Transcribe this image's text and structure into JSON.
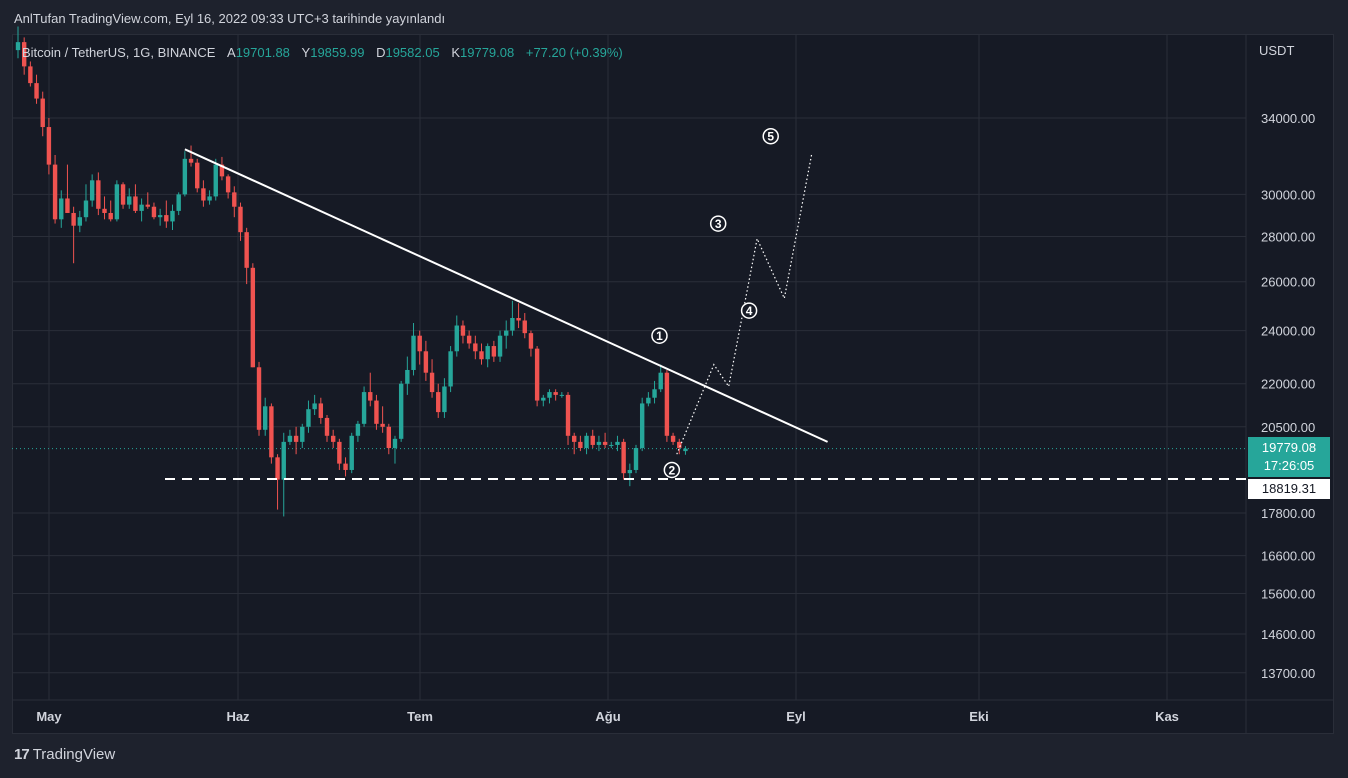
{
  "publish_line": "AnlTufan TradingView.com, Eyl 16, 2022 09:33 UTC+3 tarihinde yayınlandı",
  "legend": {
    "symbol": "Bitcoin / TetherUS, 1G, BINANCE",
    "open_key": "A",
    "open": "19701.88",
    "high_key": "Y",
    "high": "19859.99",
    "low_key": "D",
    "low": "19582.05",
    "close_key": "K",
    "close": "19779.08",
    "change": "+77.20 (+0.39%)"
  },
  "brand": {
    "logo": "17",
    "name": "TradingView"
  },
  "price_tag": {
    "price": "19779.08",
    "countdown": "17:26:05"
  },
  "support_tag": "18819.31",
  "colors": {
    "up": "#26a69a",
    "down": "#ef5350",
    "background": "#161a25",
    "grid": "#2a2e39"
  },
  "chart_data": {
    "type": "candlestick",
    "scale": "log",
    "currency": "USDT",
    "y_ticks": [
      "34000.00",
      "30000.00",
      "28000.00",
      "26000.00",
      "24000.00",
      "22000.00",
      "20500.00",
      "17800.00",
      "16600.00",
      "15600.00",
      "14600.00",
      "13700.00"
    ],
    "x_ticks": [
      "May",
      "Haz",
      "Tem",
      "Ağu",
      "Eyl",
      "Eki",
      "Kas"
    ],
    "last_price": 19779.08,
    "support_level": 18819.31,
    "candles": [
      [
        38000,
        39500,
        37500,
        38500
      ],
      [
        38500,
        38800,
        36500,
        37000
      ],
      [
        37000,
        37300,
        35800,
        36000
      ],
      [
        36000,
        36500,
        34800,
        35100
      ],
      [
        35100,
        35500,
        33000,
        33500
      ],
      [
        33500,
        34000,
        31000,
        31500
      ],
      [
        31500,
        32000,
        28600,
        28800
      ],
      [
        28800,
        30200,
        28400,
        29800
      ],
      [
        29800,
        31500,
        29300,
        29100
      ],
      [
        29100,
        29400,
        26800,
        28500
      ],
      [
        28500,
        29200,
        28200,
        28900
      ],
      [
        28900,
        30500,
        28700,
        29700
      ],
      [
        29700,
        31000,
        29400,
        30700
      ],
      [
        30700,
        31100,
        29000,
        29300
      ],
      [
        29300,
        29900,
        28800,
        29100
      ],
      [
        29100,
        29700,
        28700,
        28800
      ],
      [
        28800,
        30700,
        28700,
        30500
      ],
      [
        30500,
        30600,
        29300,
        29500
      ],
      [
        29500,
        30300,
        29300,
        29900
      ],
      [
        29900,
        30500,
        29100,
        29200
      ],
      [
        29200,
        29800,
        28700,
        29500
      ],
      [
        29500,
        30100,
        29300,
        29400
      ],
      [
        29400,
        29600,
        28800,
        28900
      ],
      [
        28900,
        29300,
        28500,
        29000
      ],
      [
        29000,
        29700,
        28400,
        28700
      ],
      [
        28700,
        29500,
        28300,
        29200
      ],
      [
        29200,
        30100,
        29000,
        30000
      ],
      [
        30000,
        32200,
        29900,
        31800
      ],
      [
        31800,
        32500,
        31400,
        31600
      ],
      [
        31600,
        31800,
        30100,
        30300
      ],
      [
        30300,
        30700,
        29400,
        29700
      ],
      [
        29700,
        30200,
        29500,
        29900
      ],
      [
        29900,
        31800,
        29700,
        31500
      ],
      [
        31500,
        31900,
        30700,
        30900
      ],
      [
        30900,
        31000,
        29800,
        30100
      ],
      [
        30100,
        30400,
        28900,
        29400
      ],
      [
        29400,
        29600,
        27800,
        28200
      ],
      [
        28200,
        28400,
        25900,
        26600
      ],
      [
        26600,
        26800,
        22600,
        22600
      ],
      [
        22600,
        22800,
        20200,
        20400
      ],
      [
        20400,
        21500,
        20200,
        21200
      ],
      [
        21200,
        21300,
        19300,
        19500
      ],
      [
        19500,
        19600,
        17900,
        18800
      ],
      [
        18800,
        20300,
        17700,
        20000
      ],
      [
        20000,
        20400,
        19900,
        20200
      ],
      [
        20200,
        20500,
        19600,
        20000
      ],
      [
        20000,
        20600,
        19800,
        20500
      ],
      [
        20500,
        21400,
        20300,
        21100
      ],
      [
        21100,
        21600,
        20900,
        21300
      ],
      [
        21300,
        21500,
        20600,
        20800
      ],
      [
        20800,
        20900,
        20000,
        20200
      ],
      [
        20200,
        20400,
        19800,
        20000
      ],
      [
        20000,
        20100,
        19100,
        19300
      ],
      [
        19300,
        19500,
        18900,
        19100
      ],
      [
        19100,
        20300,
        19000,
        20200
      ],
      [
        20200,
        20700,
        20000,
        20600
      ],
      [
        20600,
        21900,
        20500,
        21700
      ],
      [
        21700,
        22400,
        21200,
        21400
      ],
      [
        21400,
        21600,
        20400,
        20600
      ],
      [
        20600,
        21200,
        20300,
        20500
      ],
      [
        20500,
        20600,
        19600,
        19800
      ],
      [
        19800,
        20200,
        19300,
        20100
      ],
      [
        20100,
        22100,
        20000,
        22000
      ],
      [
        22000,
        23000,
        21600,
        22500
      ],
      [
        22500,
        24300,
        22300,
        23800
      ],
      [
        23800,
        24000,
        22700,
        23200
      ],
      [
        23200,
        23600,
        22100,
        22400
      ],
      [
        22400,
        22900,
        21500,
        21700
      ],
      [
        21700,
        22000,
        20800,
        21000
      ],
      [
        21000,
        22200,
        20800,
        21900
      ],
      [
        21900,
        23400,
        21700,
        23200
      ],
      [
        23200,
        24600,
        23000,
        24200
      ],
      [
        24200,
        24400,
        23500,
        23800
      ],
      [
        23800,
        24000,
        23300,
        23500
      ],
      [
        23500,
        23800,
        22900,
        23200
      ],
      [
        23200,
        23500,
        22700,
        22900
      ],
      [
        22900,
        23500,
        22600,
        23400
      ],
      [
        23400,
        23600,
        22800,
        23000
      ],
      [
        23000,
        24000,
        22800,
        23800
      ],
      [
        23800,
        24400,
        23300,
        24000
      ],
      [
        24000,
        25200,
        23800,
        24500
      ],
      [
        24500,
        25100,
        24100,
        24400
      ],
      [
        24400,
        24700,
        23700,
        23900
      ],
      [
        23900,
        24000,
        23000,
        23300
      ],
      [
        23300,
        23400,
        21200,
        21400
      ],
      [
        21400,
        21600,
        21200,
        21500
      ],
      [
        21500,
        21800,
        21300,
        21700
      ],
      [
        21700,
        21800,
        21400,
        21600
      ],
      [
        21600,
        21700,
        21500,
        21600
      ],
      [
        21600,
        21700,
        19900,
        20200
      ],
      [
        20200,
        20300,
        19600,
        20000
      ],
      [
        20000,
        20200,
        19700,
        19800
      ],
      [
        19800,
        20300,
        19600,
        20200
      ],
      [
        20200,
        20400,
        19800,
        19900
      ],
      [
        19900,
        20200,
        19700,
        20000
      ],
      [
        20000,
        20300,
        19800,
        19900
      ],
      [
        19900,
        20000,
        19800,
        19900
      ],
      [
        19900,
        20200,
        19700,
        20000
      ],
      [
        20000,
        20100,
        18800,
        19000
      ],
      [
        19000,
        19300,
        18600,
        19100
      ],
      [
        19100,
        19900,
        19000,
        19800
      ],
      [
        19800,
        21500,
        19700,
        21300
      ],
      [
        21300,
        21700,
        21200,
        21500
      ],
      [
        21500,
        22100,
        21300,
        21800
      ],
      [
        21800,
        22700,
        21700,
        22400
      ],
      [
        22400,
        22500,
        20000,
        20200
      ],
      [
        20200,
        20300,
        19900,
        20000
      ],
      [
        20000,
        20100,
        19600,
        19800
      ],
      [
        19700,
        19860,
        19582,
        19779
      ]
    ],
    "trendline": {
      "from": {
        "candle": 27,
        "price": 32300
      },
      "to": {
        "candle": 131,
        "price": 20000
      }
    },
    "projection": [
      {
        "candle": 106.6,
        "price": 19600
      },
      {
        "candle": 112.6,
        "price": 22700
      },
      {
        "candle": 115,
        "price": 21900
      },
      {
        "candle": 119.6,
        "price": 27900
      },
      {
        "candle": 124,
        "price": 25300
      },
      {
        "candle": 128.4,
        "price": 32000
      }
    ],
    "wave_labels": [
      {
        "label": "1",
        "candle": 103.8,
        "price": 23800
      },
      {
        "label": "2",
        "candle": 105.8,
        "price": 19100
      },
      {
        "label": "3",
        "candle": 113.3,
        "price": 28600
      },
      {
        "label": "4",
        "candle": 118.3,
        "price": 24800
      },
      {
        "label": "5",
        "candle": 121.8,
        "price": 33000
      }
    ]
  }
}
